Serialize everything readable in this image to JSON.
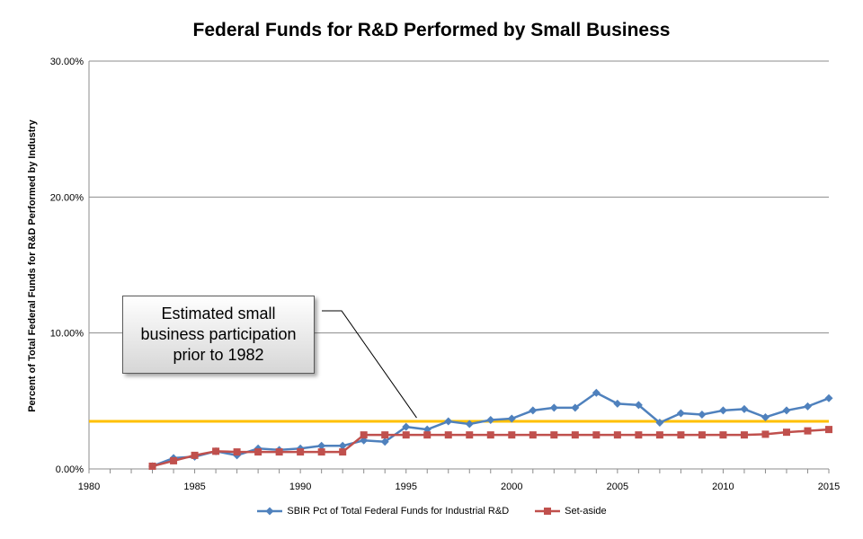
{
  "chart_data": {
    "type": "line",
    "title": "Federal Funds for R&D Performed by Small Business",
    "ylabel": "Percent of Total Federal Funds for R&D Performed by Industry",
    "xlabel": "",
    "xlim": [
      1980,
      2015
    ],
    "ylim": [
      0,
      30
    ],
    "x_ticks": [
      1980,
      1985,
      1990,
      1995,
      2000,
      2005,
      2010,
      2015
    ],
    "x_tick_labels": [
      "1980",
      "1985",
      "1990",
      "1995",
      "2000",
      "2005",
      "2010",
      "2015"
    ],
    "y_ticks": [
      0,
      10,
      20,
      30
    ],
    "y_tick_labels": [
      "0.00%",
      "10.00%",
      "20.00%",
      "30.00%"
    ],
    "grid": "horizontal",
    "legend": "bottom",
    "series": [
      {
        "name": "SBIR Pct of Total Federal Funds for Industrial R&D",
        "color": "#4f81bd",
        "marker": "diamond",
        "x": [
          1983,
          1984,
          1985,
          1986,
          1987,
          1988,
          1989,
          1990,
          1991,
          1992,
          1993,
          1994,
          1995,
          1996,
          1997,
          1998,
          1999,
          2000,
          2001,
          2002,
          2003,
          2004,
          2005,
          2006,
          2007,
          2008,
          2009,
          2010,
          2011,
          2012,
          2013,
          2014,
          2015
        ],
        "values": [
          0.2,
          0.8,
          0.9,
          1.3,
          1.0,
          1.5,
          1.4,
          1.5,
          1.7,
          1.7,
          2.1,
          2.0,
          3.1,
          2.9,
          3.5,
          3.3,
          3.6,
          3.7,
          4.3,
          4.5,
          4.5,
          5.6,
          4.8,
          4.7,
          3.4,
          4.1,
          4.0,
          4.3,
          4.4,
          3.8,
          4.3,
          4.6,
          5.2
        ]
      },
      {
        "name": "Set-aside",
        "color": "#c0504d",
        "marker": "square",
        "x": [
          1983,
          1984,
          1985,
          1986,
          1987,
          1988,
          1989,
          1990,
          1991,
          1992,
          1993,
          1994,
          1995,
          1996,
          1997,
          1998,
          1999,
          2000,
          2001,
          2002,
          2003,
          2004,
          2005,
          2006,
          2007,
          2008,
          2009,
          2010,
          2011,
          2012,
          2013,
          2014,
          2015
        ],
        "values": [
          0.2,
          0.6,
          1.0,
          1.3,
          1.25,
          1.25,
          1.25,
          1.25,
          1.25,
          1.25,
          2.5,
          2.5,
          2.5,
          2.5,
          2.5,
          2.5,
          2.5,
          2.5,
          2.5,
          2.5,
          2.5,
          2.5,
          2.5,
          2.5,
          2.5,
          2.5,
          2.5,
          2.5,
          2.5,
          2.55,
          2.7,
          2.8,
          2.9
        ]
      }
    ],
    "reference_line": {
      "value": 3.5,
      "color": "#ffc000"
    },
    "annotation": {
      "text": "Estimated small business participation prior to 1982",
      "points_to": {
        "x": 1995.5,
        "y": 3.5
      }
    }
  }
}
